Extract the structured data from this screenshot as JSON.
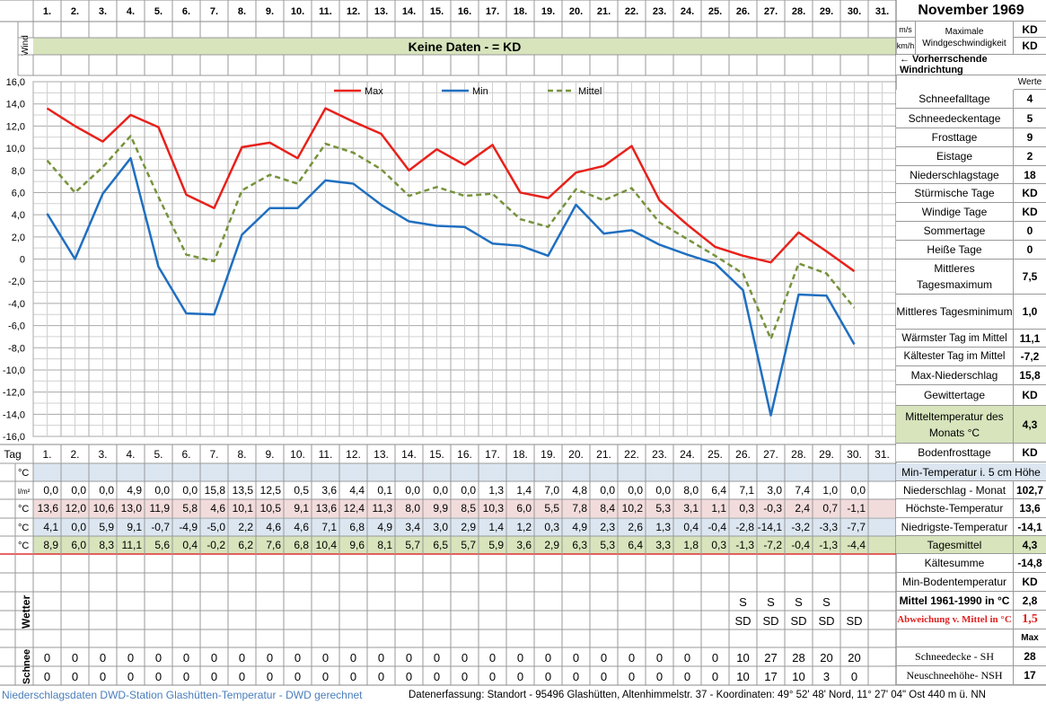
{
  "title": "November 1969",
  "days": [
    "1.",
    "2.",
    "3.",
    "4.",
    "5.",
    "6.",
    "7.",
    "8.",
    "9.",
    "10.",
    "11.",
    "12.",
    "13.",
    "14.",
    "15.",
    "16.",
    "17.",
    "18.",
    "19.",
    "20.",
    "21.",
    "22.",
    "23.",
    "24.",
    "25.",
    "26.",
    "27.",
    "28.",
    "29.",
    "30.",
    "31."
  ],
  "wind": {
    "label": "Wind",
    "banner": "Keine Daten -  = KD",
    "units": [
      "m/s",
      "km/h"
    ],
    "max_label": "Maximale Windgeschwindigkeit",
    "max_values": [
      "KD",
      "KD"
    ],
    "direction_label": "← Vorherrschende Windrichtung"
  },
  "chart_data": {
    "type": "line",
    "x": [
      1,
      2,
      3,
      4,
      5,
      6,
      7,
      8,
      9,
      10,
      11,
      12,
      13,
      14,
      15,
      16,
      17,
      18,
      19,
      20,
      21,
      22,
      23,
      24,
      25,
      26,
      27,
      28,
      29,
      30
    ],
    "series": [
      {
        "name": "Max",
        "color": "#e8211b",
        "dash": "none",
        "values": [
          13.6,
          12.0,
          10.6,
          13.0,
          11.9,
          5.8,
          4.6,
          10.1,
          10.5,
          9.1,
          13.6,
          12.4,
          11.3,
          8.0,
          9.9,
          8.5,
          10.3,
          6.0,
          5.5,
          7.8,
          8.4,
          10.2,
          5.3,
          3.1,
          1.1,
          0.3,
          -0.3,
          2.4,
          0.7,
          -1.1
        ]
      },
      {
        "name": "Min",
        "color": "#1f6fc0",
        "dash": "none",
        "values": [
          4.1,
          0.0,
          5.9,
          9.1,
          -0.7,
          -4.9,
          -5.0,
          2.2,
          4.6,
          4.6,
          7.1,
          6.8,
          4.9,
          3.4,
          3.0,
          2.9,
          1.4,
          1.2,
          0.3,
          4.9,
          2.3,
          2.6,
          1.3,
          0.4,
          -0.4,
          -2.8,
          -14.1,
          -3.2,
          -3.3,
          -7.7
        ]
      },
      {
        "name": "Mittel",
        "color": "#76933c",
        "dash": "6,4",
        "values": [
          8.9,
          6.0,
          8.3,
          11.1,
          5.6,
          0.4,
          -0.2,
          6.2,
          7.6,
          6.8,
          10.4,
          9.6,
          8.1,
          5.7,
          6.5,
          5.7,
          5.9,
          3.6,
          2.9,
          6.3,
          5.3,
          6.4,
          3.3,
          1.8,
          0.3,
          -1.3,
          -7.2,
          -0.4,
          -1.3,
          -4.4
        ]
      }
    ],
    "ylim": [
      -16,
      16
    ],
    "y_ticks": [
      "16,0",
      "14,0",
      "12,0",
      "10,0",
      "8,0",
      "6,0",
      "4,0",
      "2,0",
      "0",
      "-2,0",
      "-4,0",
      "-6,0",
      "-8,0",
      "-10,0",
      "-12,0",
      "-14,0",
      "-16,0"
    ],
    "grid": true,
    "legend_position": "top"
  },
  "table": {
    "tag_label": "Tag",
    "rows": [
      {
        "unit": "°C",
        "bg": "#dce6f1",
        "values": [
          "",
          "",
          "",
          "",
          "",
          "",
          "",
          "",
          "",
          "",
          "",
          "",
          "",
          "",
          "",
          "",
          "",
          "",
          "",
          "",
          "",
          "",
          "",
          "",
          "",
          "",
          "",
          "",
          "",
          "",
          ""
        ],
        "label": "Min-Temperatur i. 5 cm Höhe",
        "value": ""
      },
      {
        "unit": "l/m²",
        "bg": "#ffffff",
        "values": [
          "0,0",
          "0,0",
          "0,0",
          "4,9",
          "0,0",
          "0,0",
          "15,8",
          "13,5",
          "12,5",
          "0,5",
          "3,6",
          "4,4",
          "0,1",
          "0,0",
          "0,0",
          "0,0",
          "1,3",
          "1,4",
          "7,0",
          "4,8",
          "0,0",
          "0,0",
          "0,0",
          "8,0",
          "6,4",
          "7,1",
          "3,0",
          "7,4",
          "1,0",
          "0,0",
          ""
        ],
        "label": "Niederschlag - Monat",
        "value": "102,7"
      },
      {
        "unit": "°C",
        "bg": "#f2dcdb",
        "values": [
          "13,6",
          "12,0",
          "10,6",
          "13,0",
          "11,9",
          "5,8",
          "4,6",
          "10,1",
          "10,5",
          "9,1",
          "13,6",
          "12,4",
          "11,3",
          "8,0",
          "9,9",
          "8,5",
          "10,3",
          "6,0",
          "5,5",
          "7,8",
          "8,4",
          "10,2",
          "5,3",
          "3,1",
          "1,1",
          "0,3",
          "-0,3",
          "2,4",
          "0,7",
          "-1,1",
          ""
        ],
        "label": "Höchste-Temperatur",
        "value": "13,6"
      },
      {
        "unit": "°C",
        "bg": "#dce6f1",
        "values": [
          "4,1",
          "0,0",
          "5,9",
          "9,1",
          "-0,7",
          "-4,9",
          "-5,0",
          "2,2",
          "4,6",
          "4,6",
          "7,1",
          "6,8",
          "4,9",
          "3,4",
          "3,0",
          "2,9",
          "1,4",
          "1,2",
          "0,3",
          "4,9",
          "2,3",
          "2,6",
          "1,3",
          "0,4",
          "-0,4",
          "-2,8",
          "-14,1",
          "-3,2",
          "-3,3",
          "-7,7",
          ""
        ],
        "label": "Niedrigste-Temperatur",
        "value": "-14,1"
      },
      {
        "unit": "°C",
        "bg": "#d7e4bc",
        "values": [
          "8,9",
          "6,0",
          "8,3",
          "11,1",
          "5,6",
          "0,4",
          "-0,2",
          "6,2",
          "7,6",
          "6,8",
          "10,4",
          "9,6",
          "8,1",
          "5,7",
          "6,5",
          "5,7",
          "5,9",
          "3,6",
          "2,9",
          "6,3",
          "5,3",
          "6,4",
          "3,3",
          "1,8",
          "0,3",
          "-1,3",
          "-7,2",
          "-0,4",
          "-1,3",
          "-4,4",
          ""
        ],
        "label": "Tagesmittel",
        "value": "4,3"
      }
    ]
  },
  "wetter": {
    "label": "Wetter",
    "row_s": [
      "",
      "",
      "",
      "",
      "",
      "",
      "",
      "",
      "",
      "",
      "",
      "",
      "",
      "",
      "",
      "",
      "",
      "",
      "",
      "",
      "",
      "",
      "",
      "",
      "",
      "S",
      "S",
      "S",
      "S",
      "",
      ""
    ],
    "row_sd": [
      "",
      "",
      "",
      "",
      "",
      "",
      "",
      "",
      "",
      "",
      "",
      "",
      "",
      "",
      "",
      "",
      "",
      "",
      "",
      "",
      "",
      "",
      "",
      "",
      "",
      "SD",
      "SD",
      "SD",
      "SD",
      "SD",
      ""
    ]
  },
  "schnee": {
    "label": "Schnee",
    "sh": [
      "0",
      "0",
      "0",
      "0",
      "0",
      "0",
      "0",
      "0",
      "0",
      "0",
      "0",
      "0",
      "0",
      "0",
      "0",
      "0",
      "0",
      "0",
      "0",
      "0",
      "0",
      "0",
      "0",
      "0",
      "0",
      "10",
      "27",
      "28",
      "20",
      "20",
      ""
    ],
    "nsh": [
      "0",
      "0",
      "0",
      "0",
      "0",
      "0",
      "0",
      "0",
      "0",
      "0",
      "0",
      "0",
      "0",
      "0",
      "0",
      "0",
      "0",
      "0",
      "0",
      "0",
      "0",
      "0",
      "0",
      "0",
      "0",
      "10",
      "17",
      "10",
      "3",
      "0",
      ""
    ]
  },
  "stats": {
    "header": "Werte",
    "items": [
      {
        "label": "Schneefalltage",
        "value": "4"
      },
      {
        "label": "Schneedeckentage",
        "value": "5"
      },
      {
        "label": "Frosttage",
        "value": "9"
      },
      {
        "label": "Eistage",
        "value": "2"
      },
      {
        "label": "Niederschlagstage",
        "value": "18"
      },
      {
        "label": "Stürmische Tage",
        "value": "KD"
      },
      {
        "label": "Windige Tage",
        "value": "KD"
      },
      {
        "label": "Sommertage",
        "value": "0"
      },
      {
        "label": "Heiße Tage",
        "value": "0"
      },
      {
        "label": "Mittleres Tagesmaximum",
        "value": "7,5"
      },
      {
        "label": "Mittleres Tagesminimum",
        "value": "1,0"
      },
      {
        "label": "Wärmster Tag im Mittel",
        "value": "11,1"
      },
      {
        "label": "Kältester Tag im Mittel",
        "value": "-7,2"
      },
      {
        "label": "Max-Niederschlag",
        "value": "15,8"
      },
      {
        "label": "Gewittertage",
        "value": "KD"
      },
      {
        "label": "Mitteltemperatur des Monats °C",
        "value": "4,3"
      },
      {
        "label": "Bodenfrosttage",
        "value": "KD"
      }
    ],
    "lower": [
      {
        "label": "Kältesumme",
        "value": "-14,8"
      },
      {
        "label": "Min-Bodentemperatur",
        "value": "KD"
      },
      {
        "label": "Mittel 1961-1990 in °C",
        "value": "2,8"
      },
      {
        "label": "Abweichung v. Mittel in °C",
        "value": "1,5"
      },
      {
        "label": "",
        "value": "Max"
      },
      {
        "label": "Schneedecke -  SH",
        "value": "28"
      },
      {
        "label": "Neuschneehöhe- NSH",
        "value": "17"
      }
    ]
  },
  "footer": {
    "left": "Niederschlagsdaten DWD-Station Glashütten-Temperatur -  DWD gerechnet",
    "right": "Datenerfassung: Standort -  95496 Glashütten, Altenhimmelstr. 37 - Koordinaten: 49° 52' 48' Nord,  11° 27' 04\" Ost  440 m ü. NN"
  }
}
